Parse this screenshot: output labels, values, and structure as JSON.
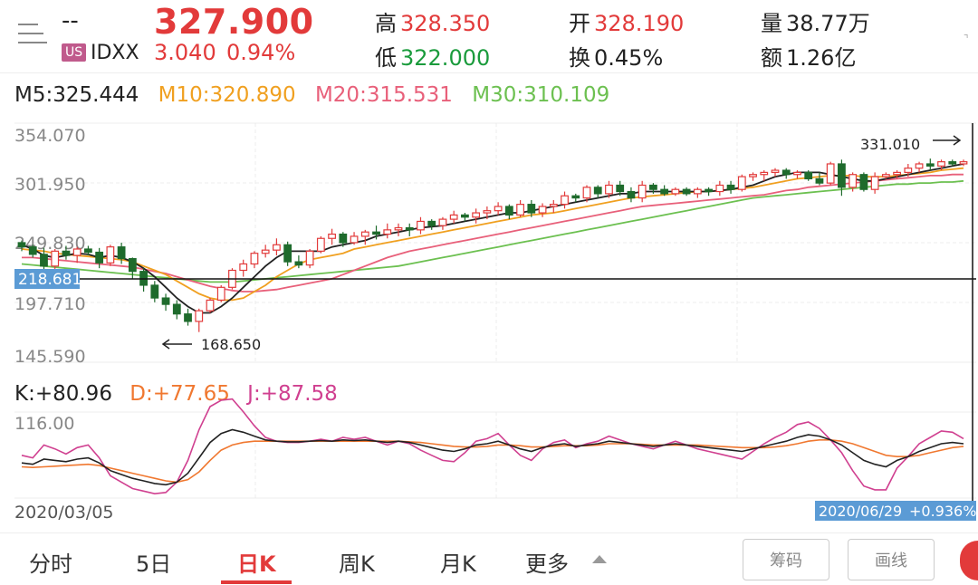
{
  "header": {
    "name": "--",
    "market_badge": "US",
    "ticker": "IDXX",
    "price": "327.900",
    "change": "3.040",
    "change_pct": "0.94%",
    "high_label": "高",
    "high": "328.350",
    "low_label": "低",
    "low": "322.000",
    "open_label": "开",
    "open": "328.190",
    "turnover_label": "换",
    "turnover": "0.45%",
    "volume_label": "量",
    "volume": "38.77万",
    "amount_label": "额",
    "amount": "1.26亿"
  },
  "ma": {
    "m5": "M5:325.444",
    "m10": "M10:320.890",
    "m20": "M20:315.531",
    "m30": "M30:310.109"
  },
  "kdj": {
    "k": "K:+80.96",
    "d": "D:+77.65",
    "j": "J:+87.58"
  },
  "chart_data": {
    "type": "candlestick",
    "y_ticks": [
      "354.070",
      "301.950",
      "249.830",
      "197.710",
      "145.590"
    ],
    "crosshair_price": "218.681",
    "max_label": "331.010",
    "min_label": "168.650",
    "kdj_top_label": "116.00",
    "start_date": "2020/03/05",
    "end_date": "2020/06/29",
    "end_change": "+0.936%",
    "colors": {
      "up": "#e23a3a",
      "down": "#1e6b2c",
      "m5": "#222222",
      "m10": "#f0a020",
      "m20": "#e8607a",
      "m30": "#6cc050",
      "k": "#222222",
      "d": "#f07830",
      "j": "#d04090"
    },
    "candles": [
      [
        252,
        254,
        244,
        248
      ],
      [
        248,
        250,
        238,
        241
      ],
      [
        241,
        247,
        222,
        230
      ],
      [
        230,
        246,
        226,
        244
      ],
      [
        244,
        249,
        236,
        240
      ],
      [
        240,
        248,
        233,
        246
      ],
      [
        246,
        249,
        240,
        243
      ],
      [
        243,
        247,
        228,
        233
      ],
      [
        233,
        250,
        230,
        248
      ],
      [
        248,
        252,
        232,
        237
      ],
      [
        237,
        238,
        218,
        225
      ],
      [
        225,
        228,
        206,
        212
      ],
      [
        212,
        216,
        196,
        200
      ],
      [
        200,
        204,
        188,
        194
      ],
      [
        194,
        198,
        180,
        185
      ],
      [
        185,
        190,
        174,
        178
      ],
      [
        178,
        190,
        168,
        188
      ],
      [
        188,
        200,
        186,
        198
      ],
      [
        198,
        212,
        196,
        210
      ],
      [
        210,
        228,
        208,
        226
      ],
      [
        226,
        236,
        220,
        232
      ],
      [
        232,
        244,
        228,
        242
      ],
      [
        242,
        250,
        238,
        245
      ],
      [
        245,
        256,
        240,
        250
      ],
      [
        250,
        253,
        230,
        234
      ],
      [
        234,
        240,
        228,
        231
      ],
      [
        231,
        246,
        228,
        244
      ],
      [
        244,
        258,
        242,
        256
      ],
      [
        256,
        265,
        250,
        260
      ],
      [
        260,
        262,
        248,
        252
      ],
      [
        252,
        262,
        250,
        258
      ],
      [
        258,
        264,
        250,
        262
      ],
      [
        262,
        268,
        255,
        260
      ],
      [
        260,
        270,
        256,
        264
      ],
      [
        264,
        270,
        258,
        266
      ],
      [
        266,
        270,
        258,
        264
      ],
      [
        264,
        276,
        260,
        272
      ],
      [
        272,
        274,
        264,
        268
      ],
      [
        268,
        276,
        264,
        274
      ],
      [
        274,
        282,
        270,
        278
      ],
      [
        278,
        280,
        272,
        276
      ],
      [
        276,
        284,
        270,
        280
      ],
      [
        280,
        286,
        274,
        282
      ],
      [
        282,
        290,
        278,
        286
      ],
      [
        286,
        288,
        274,
        278
      ],
      [
        278,
        292,
        276,
        288
      ],
      [
        288,
        292,
        276,
        280
      ],
      [
        280,
        289,
        276,
        286
      ],
      [
        286,
        292,
        280,
        288
      ],
      [
        288,
        300,
        284,
        296
      ],
      [
        296,
        298,
        290,
        294
      ],
      [
        294,
        306,
        290,
        304
      ],
      [
        304,
        306,
        294,
        298
      ],
      [
        298,
        310,
        294,
        306
      ],
      [
        306,
        310,
        296,
        300
      ],
      [
        300,
        304,
        290,
        294
      ],
      [
        294,
        310,
        290,
        306
      ],
      [
        306,
        308,
        298,
        302
      ],
      [
        302,
        306,
        296,
        298
      ],
      [
        298,
        304,
        296,
        302
      ],
      [
        302,
        304,
        296,
        298
      ],
      [
        298,
        304,
        294,
        302
      ],
      [
        302,
        304,
        296,
        300
      ],
      [
        300,
        310,
        296,
        306
      ],
      [
        306,
        310,
        298,
        302
      ],
      [
        302,
        316,
        300,
        314
      ],
      [
        314,
        318,
        310,
        316
      ],
      [
        316,
        320,
        310,
        318
      ],
      [
        318,
        322,
        314,
        320
      ],
      [
        320,
        322,
        312,
        316
      ],
      [
        316,
        320,
        312,
        318
      ],
      [
        318,
        320,
        310,
        312
      ],
      [
        312,
        318,
        306,
        308
      ],
      [
        308,
        328,
        306,
        326
      ],
      [
        326,
        330,
        296,
        304
      ],
      [
        304,
        318,
        300,
        316
      ],
      [
        316,
        318,
        300,
        302
      ],
      [
        302,
        318,
        298,
        314
      ],
      [
        314,
        318,
        312,
        316
      ],
      [
        316,
        320,
        312,
        318
      ],
      [
        318,
        326,
        314,
        322
      ],
      [
        322,
        328,
        318,
        326
      ],
      [
        326,
        331,
        320,
        324
      ],
      [
        324,
        330,
        320,
        328
      ],
      [
        328,
        330,
        324,
        326
      ],
      [
        326,
        330,
        324,
        328
      ]
    ],
    "m5": [
      250,
      246,
      240,
      238,
      240,
      242,
      241,
      238,
      240,
      238,
      234,
      228,
      220,
      210,
      200,
      192,
      186,
      186,
      192,
      200,
      210,
      220,
      230,
      238,
      244,
      244,
      244,
      244,
      248,
      250,
      252,
      254,
      258,
      260,
      262,
      264,
      266,
      267,
      268,
      270,
      272,
      274,
      276,
      278,
      280,
      280,
      282,
      284,
      286,
      288,
      290,
      292,
      294,
      296,
      298,
      298,
      300,
      300,
      300,
      300,
      300,
      300,
      300,
      301,
      302,
      304,
      306,
      310,
      314,
      316,
      318,
      318,
      318,
      316,
      314,
      312,
      310,
      310,
      312,
      314,
      316,
      318,
      320,
      322,
      324,
      326
    ],
    "m10": [
      246,
      245,
      244,
      242,
      241,
      240,
      239,
      238,
      237,
      236,
      234,
      230,
      226,
      222,
      216,
      210,
      204,
      200,
      198,
      198,
      200,
      206,
      212,
      220,
      226,
      232,
      236,
      238,
      240,
      242,
      246,
      248,
      250,
      252,
      254,
      256,
      258,
      260,
      262,
      264,
      266,
      268,
      270,
      272,
      274,
      276,
      278,
      279,
      280,
      282,
      284,
      286,
      288,
      290,
      292,
      294,
      295,
      296,
      297,
      298,
      299,
      300,
      300,
      301,
      302,
      303,
      304,
      306,
      308,
      310,
      312,
      313,
      314,
      315,
      315,
      315,
      314,
      314,
      314,
      315,
      316,
      317,
      318,
      320,
      321,
      322
    ],
    "m20": [
      238,
      238,
      237,
      236,
      235,
      234,
      233,
      232,
      231,
      230,
      229,
      227,
      225,
      223,
      220,
      217,
      214,
      211,
      209,
      207,
      206,
      206,
      207,
      208,
      210,
      212,
      214,
      216,
      218,
      222,
      226,
      230,
      234,
      238,
      241,
      244,
      246,
      248,
      250,
      252,
      254,
      256,
      258,
      260,
      262,
      264,
      266,
      268,
      270,
      272,
      274,
      276,
      278,
      280,
      282,
      284,
      286,
      287,
      288,
      289,
      290,
      291,
      292,
      293,
      294,
      295,
      296,
      297,
      299,
      301,
      302,
      304,
      305,
      306,
      307,
      308,
      309,
      310,
      311,
      312,
      313,
      314,
      315,
      315,
      316,
      316
    ],
    "m30": [
      232,
      231,
      230,
      229,
      228,
      227,
      226,
      225,
      224,
      223,
      222,
      221,
      220,
      219,
      218,
      217,
      216,
      215,
      215,
      215,
      216,
      217,
      218,
      219,
      220,
      221,
      222,
      223,
      224,
      225,
      226,
      227,
      228,
      229,
      230,
      232,
      234,
      236,
      238,
      240,
      242,
      244,
      246,
      248,
      250,
      252,
      254,
      256,
      258,
      260,
      262,
      264,
      266,
      268,
      270,
      272,
      274,
      276,
      278,
      280,
      282,
      284,
      286,
      288,
      290,
      292,
      294,
      295,
      296,
      297,
      298,
      299,
      300,
      301,
      302,
      303,
      304,
      305,
      306,
      307,
      307,
      308,
      308,
      309,
      309,
      310
    ],
    "k": [
      52,
      50,
      58,
      56,
      54,
      58,
      60,
      52,
      40,
      34,
      28,
      24,
      20,
      18,
      22,
      36,
      60,
      84,
      98,
      104,
      100,
      94,
      88,
      86,
      85,
      85,
      86,
      87,
      86,
      88,
      87,
      88,
      86,
      84,
      86,
      84,
      80,
      76,
      72,
      70,
      74,
      80,
      82,
      86,
      80,
      74,
      70,
      76,
      80,
      82,
      78,
      80,
      82,
      86,
      84,
      82,
      80,
      78,
      80,
      82,
      80,
      78,
      76,
      74,
      72,
      70,
      74,
      78,
      82,
      86,
      92,
      96,
      94,
      88,
      80,
      68,
      56,
      50,
      46,
      56,
      62,
      70,
      76,
      82,
      84,
      82
    ],
    "d": [
      46,
      45,
      46,
      47,
      48,
      49,
      50,
      48,
      44,
      40,
      36,
      32,
      28,
      24,
      22,
      26,
      38,
      56,
      72,
      80,
      84,
      86,
      86,
      86,
      86,
      86,
      86,
      86,
      86,
      86,
      86,
      86,
      86,
      86,
      86,
      85,
      84,
      82,
      80,
      78,
      77,
      77,
      78,
      80,
      80,
      79,
      77,
      77,
      78,
      79,
      79,
      79,
      80,
      82,
      82,
      82,
      81,
      80,
      80,
      80,
      80,
      80,
      79,
      78,
      77,
      76,
      76,
      76,
      77,
      79,
      82,
      86,
      88,
      88,
      86,
      82,
      76,
      70,
      64,
      62,
      62,
      64,
      68,
      72,
      76,
      78
    ],
    "j": [
      64,
      60,
      80,
      74,
      66,
      76,
      80,
      60,
      32,
      22,
      12,
      8,
      4,
      6,
      22,
      56,
      104,
      140,
      150,
      152,
      132,
      110,
      92,
      86,
      84,
      84,
      86,
      89,
      86,
      92,
      89,
      92,
      86,
      80,
      86,
      82,
      72,
      64,
      56,
      54,
      68,
      86,
      90,
      98,
      80,
      64,
      56,
      74,
      84,
      88,
      76,
      82,
      86,
      94,
      88,
      82,
      78,
      74,
      80,
      86,
      80,
      74,
      70,
      66,
      62,
      58,
      70,
      82,
      92,
      100,
      112,
      116,
      106,
      88,
      68,
      40,
      16,
      10,
      10,
      44,
      62,
      82,
      92,
      102,
      100,
      90
    ]
  },
  "tabs": [
    "分时",
    "5日",
    "日K",
    "周K",
    "月K",
    "更多"
  ],
  "active_tab": "日K",
  "buttons": {
    "chips": "筹码",
    "draw": "画线"
  }
}
